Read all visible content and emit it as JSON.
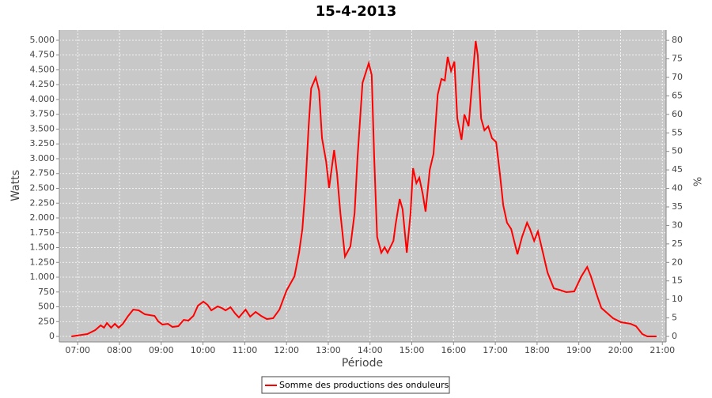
{
  "chart_data": {
    "type": "line",
    "title": "15-4-2013",
    "xlabel": "Période",
    "ylabel": "Watts",
    "y2label": "%",
    "xlim": [
      6.56,
      21.09
    ],
    "ylim": [
      -93,
      5173
    ],
    "y2lim": [
      -1.49,
      82.8
    ],
    "grid": true,
    "legend": "bottom",
    "xticks": [
      {
        "value": 7,
        "label": "07:00"
      },
      {
        "value": 8,
        "label": "08:00"
      },
      {
        "value": 9,
        "label": "09:00"
      },
      {
        "value": 10,
        "label": "10:00"
      },
      {
        "value": 11,
        "label": "11:00"
      },
      {
        "value": 12,
        "label": "12:00"
      },
      {
        "value": 13,
        "label": "13:00"
      },
      {
        "value": 14,
        "label": "14:00"
      },
      {
        "value": 15,
        "label": "15:00"
      },
      {
        "value": 16,
        "label": "16:00"
      },
      {
        "value": 17,
        "label": "17:00"
      },
      {
        "value": 18,
        "label": "18:00"
      },
      {
        "value": 19,
        "label": "19:00"
      },
      {
        "value": 20,
        "label": "20:00"
      },
      {
        "value": 21,
        "label": "21:00"
      }
    ],
    "yticks": [
      0,
      250,
      500,
      750,
      {
        "value": 1000,
        "label": "1.000"
      },
      {
        "value": 1250,
        "label": "1.250"
      },
      {
        "value": 1500,
        "label": "1.500"
      },
      {
        "value": 1750,
        "label": "1.750"
      },
      {
        "value": 2000,
        "label": "2.000"
      },
      {
        "value": 2250,
        "label": "2.250"
      },
      {
        "value": 2500,
        "label": "2.500"
      },
      {
        "value": 2750,
        "label": "2.750"
      },
      {
        "value": 3000,
        "label": "3.000"
      },
      {
        "value": 3250,
        "label": "3.250"
      },
      {
        "value": 3500,
        "label": "3.500"
      },
      {
        "value": 3750,
        "label": "3.750"
      },
      {
        "value": 4000,
        "label": "4.000"
      },
      {
        "value": 4250,
        "label": "4.250"
      },
      {
        "value": 4500,
        "label": "4.500"
      },
      {
        "value": 4750,
        "label": "4.750"
      },
      {
        "value": 5000,
        "label": "5.000"
      }
    ],
    "y2ticks": [
      0,
      5,
      10,
      15,
      20,
      25,
      30,
      35,
      40,
      45,
      50,
      55,
      60,
      65,
      70,
      75,
      80
    ],
    "x": [
      6.85,
      7.23,
      7.42,
      7.55,
      7.63,
      7.7,
      7.8,
      7.89,
      7.98,
      8.08,
      8.21,
      8.33,
      8.46,
      8.61,
      8.84,
      8.93,
      9.03,
      9.16,
      9.27,
      9.41,
      9.54,
      9.65,
      9.77,
      9.88,
      10.01,
      10.11,
      10.2,
      10.35,
      10.45,
      10.54,
      10.66,
      10.77,
      10.86,
      11.02,
      11.13,
      11.26,
      11.39,
      11.53,
      11.68,
      11.83,
      12.0,
      12.19,
      12.3,
      12.38,
      12.45,
      12.53,
      12.59,
      12.7,
      12.78,
      12.85,
      12.95,
      13.02,
      13.14,
      13.21,
      13.29,
      13.4,
      13.53,
      13.63,
      13.7,
      13.82,
      13.97,
      14.04,
      14.1,
      14.17,
      14.27,
      14.35,
      14.42,
      14.56,
      14.61,
      14.71,
      14.78,
      14.88,
      14.97,
      15.03,
      15.11,
      15.18,
      15.26,
      15.33,
      15.43,
      15.52,
      15.62,
      15.71,
      15.79,
      15.86,
      15.94,
      16.02,
      16.09,
      16.19,
      16.26,
      16.36,
      16.43,
      16.53,
      16.58,
      16.66,
      16.74,
      16.83,
      16.92,
      17.02,
      17.11,
      17.19,
      17.28,
      17.38,
      17.53,
      17.64,
      17.76,
      17.83,
      17.93,
      18.02,
      18.14,
      18.25,
      18.4,
      18.53,
      18.7,
      18.89,
      19.06,
      19.2,
      19.29,
      19.44,
      19.54,
      19.69,
      19.82,
      20.01,
      20.24,
      20.37,
      20.52,
      20.64,
      20.86
    ],
    "series": [
      {
        "name": "Somme des productions des onduleurs",
        "color": "#ff0000",
        "values": [
          0,
          40,
          107,
          187,
          147,
          227,
          147,
          213,
          147,
          213,
          347,
          453,
          440,
          373,
          347,
          253,
          200,
          213,
          160,
          173,
          280,
          267,
          347,
          520,
          587,
          533,
          440,
          507,
          480,
          440,
          493,
          387,
          320,
          453,
          333,
          413,
          347,
          293,
          307,
          453,
          773,
          1013,
          1413,
          1813,
          2480,
          3547,
          4187,
          4373,
          4147,
          3347,
          2947,
          2507,
          3147,
          2747,
          2080,
          1347,
          1520,
          2080,
          3013,
          4280,
          4613,
          4413,
          3013,
          1680,
          1413,
          1507,
          1413,
          1613,
          1880,
          2320,
          2147,
          1413,
          2080,
          2840,
          2587,
          2680,
          2413,
          2107,
          2813,
          3080,
          4080,
          4347,
          4320,
          4720,
          4480,
          4640,
          3680,
          3320,
          3747,
          3547,
          4147,
          4987,
          4747,
          3680,
          3480,
          3547,
          3347,
          3280,
          2747,
          2213,
          1920,
          1813,
          1387,
          1680,
          1920,
          1813,
          1613,
          1773,
          1413,
          1080,
          813,
          787,
          747,
          760,
          1013,
          1173,
          1013,
          680,
          480,
          387,
          307,
          240,
          213,
          173,
          40,
          0,
          0
        ]
      }
    ]
  }
}
